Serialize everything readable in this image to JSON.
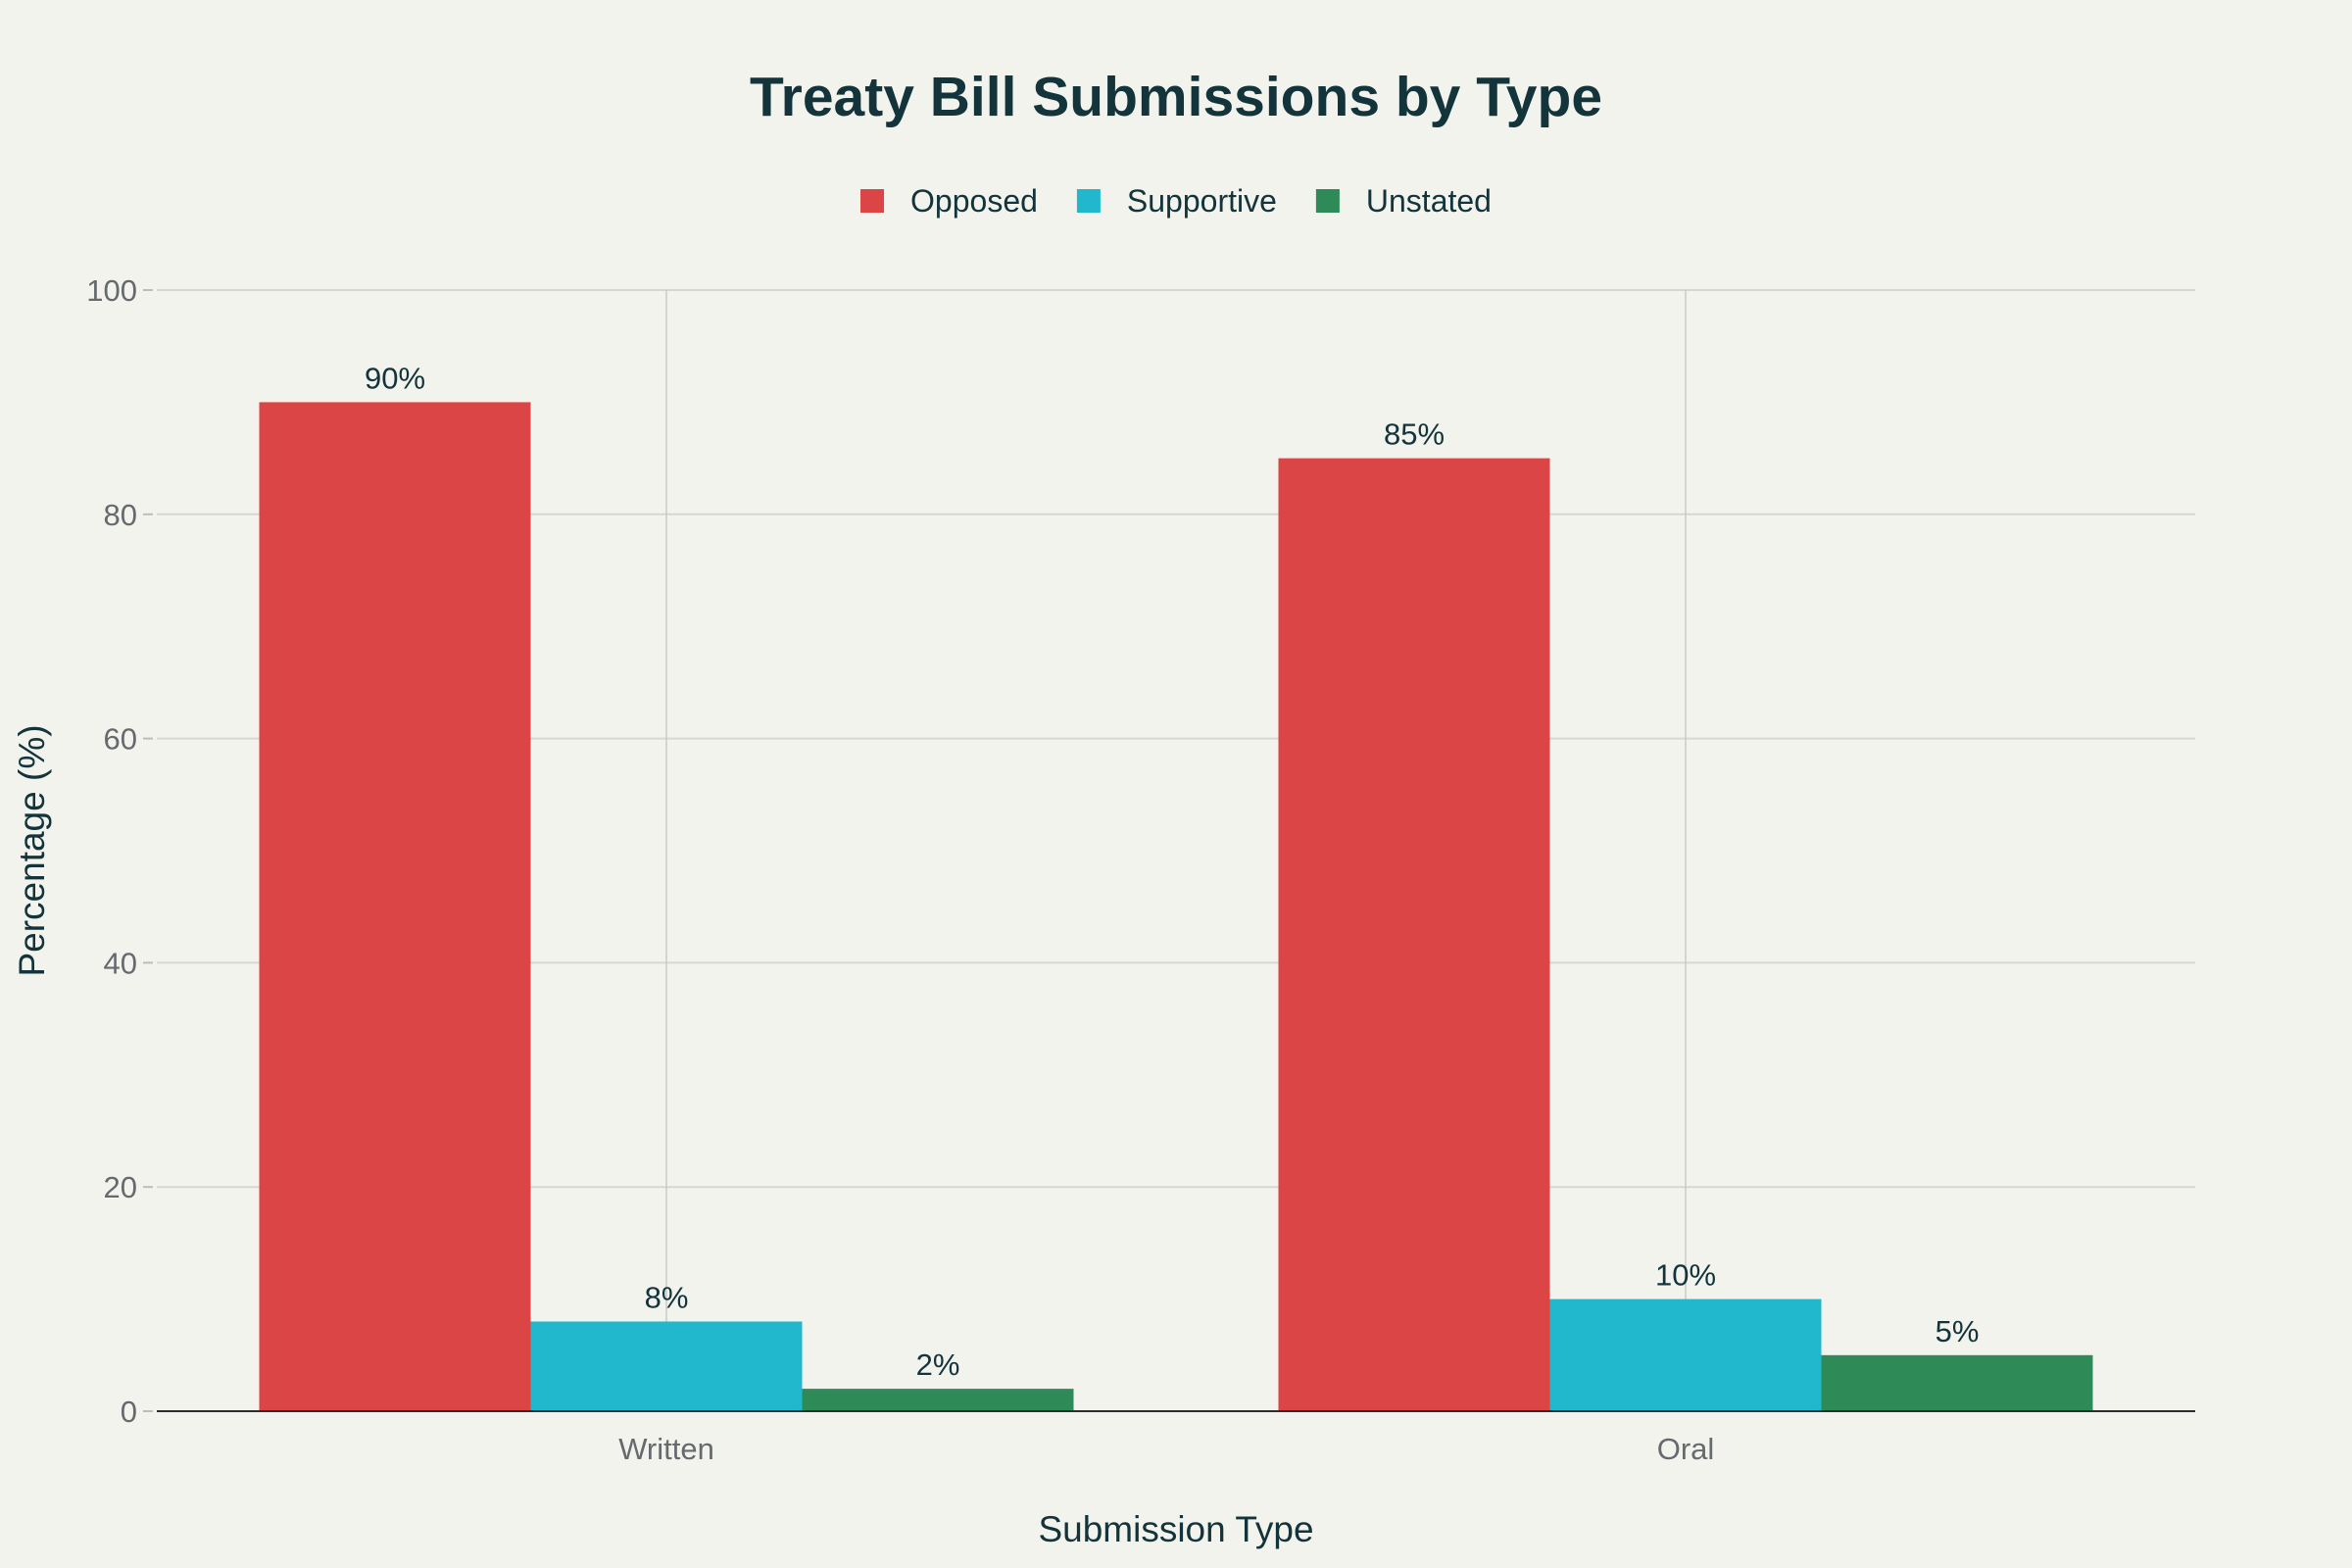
{
  "chart_data": {
    "type": "bar",
    "title": "Treaty Bill Submissions by Type",
    "xlabel": "Submission Type",
    "ylabel": "Percentage (%)",
    "categories": [
      "Written",
      "Oral"
    ],
    "series": [
      {
        "name": "Opposed",
        "values": [
          90,
          85
        ],
        "labels": [
          "90%",
          "85%"
        ],
        "color": "#db4545"
      },
      {
        "name": "Supportive",
        "values": [
          8,
          10
        ],
        "labels": [
          "8%",
          "10%"
        ],
        "color": "#21b8cd"
      },
      {
        "name": "Unstated",
        "values": [
          2,
          5
        ],
        "labels": [
          "2%",
          "5%"
        ],
        "color": "#2e8b57"
      }
    ],
    "ylim": [
      0,
      100
    ],
    "yticks": [
      0,
      20,
      40,
      60,
      80,
      100
    ],
    "grid": true,
    "legend": "top-center"
  }
}
